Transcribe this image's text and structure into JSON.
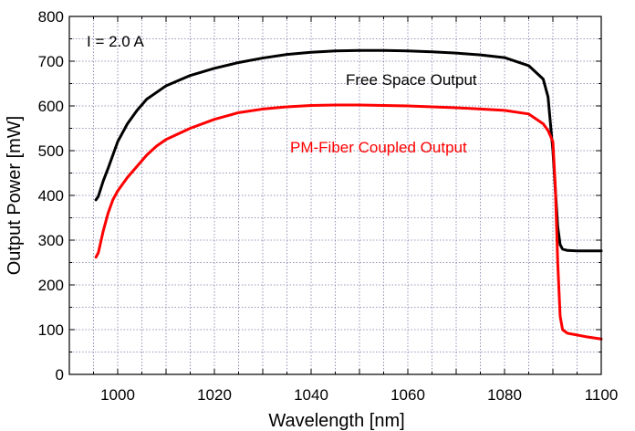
{
  "chart_data": {
    "type": "line",
    "title": "",
    "xlabel": "Wavelength [nm]",
    "ylabel": "Output Power [mW]",
    "xlim": [
      990,
      1100
    ],
    "ylim": [
      0,
      800
    ],
    "xticks": [
      "1000",
      "1020",
      "1040",
      "1060",
      "1080",
      "1100"
    ],
    "yticks": [
      "0",
      "100",
      "200",
      "300",
      "400",
      "500",
      "600",
      "700",
      "800"
    ],
    "grid": true,
    "legend": "none",
    "annotations": [
      {
        "text": "I = 2.0 A",
        "color": "#000000"
      },
      {
        "text": "Free Space Output",
        "color": "#000000"
      },
      {
        "text": "PM-Fiber Coupled Output",
        "color": "#ff0000"
      }
    ],
    "series": [
      {
        "color": "#000000",
        "x": [
          995.5,
          996,
          997,
          998,
          999,
          1000,
          1002,
          1004,
          1006,
          1008,
          1010,
          1015,
          1020,
          1025,
          1030,
          1035,
          1040,
          1045,
          1050,
          1055,
          1060,
          1065,
          1070,
          1075,
          1080,
          1085,
          1088,
          1089,
          1090,
          1091,
          1091.5,
          1092,
          1093,
          1095,
          1100
        ],
        "y": [
          390,
          398,
          432,
          460,
          490,
          520,
          560,
          590,
          615,
          630,
          645,
          668,
          684,
          697,
          707,
          715,
          720,
          723,
          724,
          724,
          723,
          721,
          718,
          714,
          708,
          690,
          660,
          620,
          500,
          330,
          290,
          280,
          277,
          276,
          276
        ]
      },
      {
        "color": "#ff0000",
        "x": [
          995.5,
          996,
          997,
          998,
          999,
          1000,
          1002,
          1004,
          1006,
          1008,
          1010,
          1015,
          1020,
          1025,
          1030,
          1035,
          1040,
          1045,
          1050,
          1055,
          1060,
          1065,
          1070,
          1075,
          1080,
          1085,
          1088,
          1089,
          1090,
          1090.5,
          1091,
          1091.5,
          1092,
          1093,
          1095,
          1097,
          1100
        ],
        "y": [
          262,
          272,
          320,
          360,
          390,
          410,
          440,
          465,
          490,
          510,
          525,
          550,
          570,
          585,
          593,
          598,
          601,
          602,
          602,
          601,
          600,
          598,
          596,
          593,
          590,
          582,
          560,
          545,
          520,
          420,
          250,
          130,
          100,
          92,
          88,
          84,
          79
        ]
      }
    ]
  }
}
